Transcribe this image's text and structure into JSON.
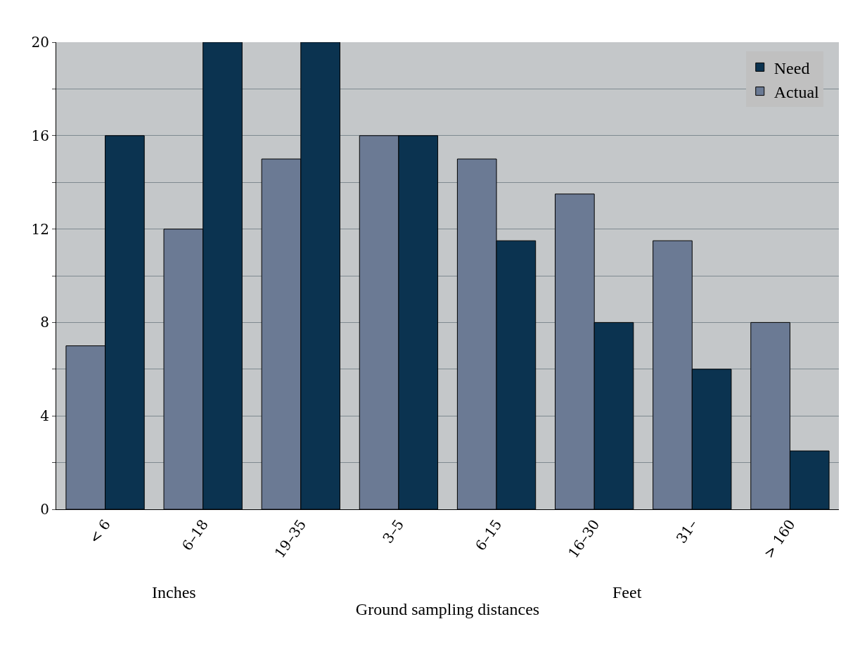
{
  "chart_data": {
    "type": "bar",
    "xlabel": "Ground sampling distances",
    "categories": [
      "< 6",
      "6–18",
      "19–35",
      "3–5",
      "6–15",
      "16–30",
      "31–",
      "> 160"
    ],
    "series": [
      {
        "name": "Actual",
        "color": "#6b7a94",
        "values": [
          7,
          12,
          15,
          16,
          15,
          13.5,
          11.5,
          8
        ]
      },
      {
        "name": "Need",
        "color": "#0b3350",
        "values": [
          16,
          20,
          20,
          16,
          11.5,
          8,
          6,
          2.5
        ]
      }
    ],
    "ylim": [
      0,
      20
    ],
    "yticks": [
      0,
      {
        "value": 2,
        "label": null
      },
      4,
      {
        "value": 6,
        "label": null
      },
      8,
      {
        "value": 10,
        "label": null
      },
      12,
      {
        "value": 14,
        "label": null
      },
      16,
      {
        "value": 18,
        "label": null
      },
      20
    ],
    "grid": "y",
    "legend": "top right",
    "annotations": [
      "Inches",
      "Feet"
    ]
  }
}
